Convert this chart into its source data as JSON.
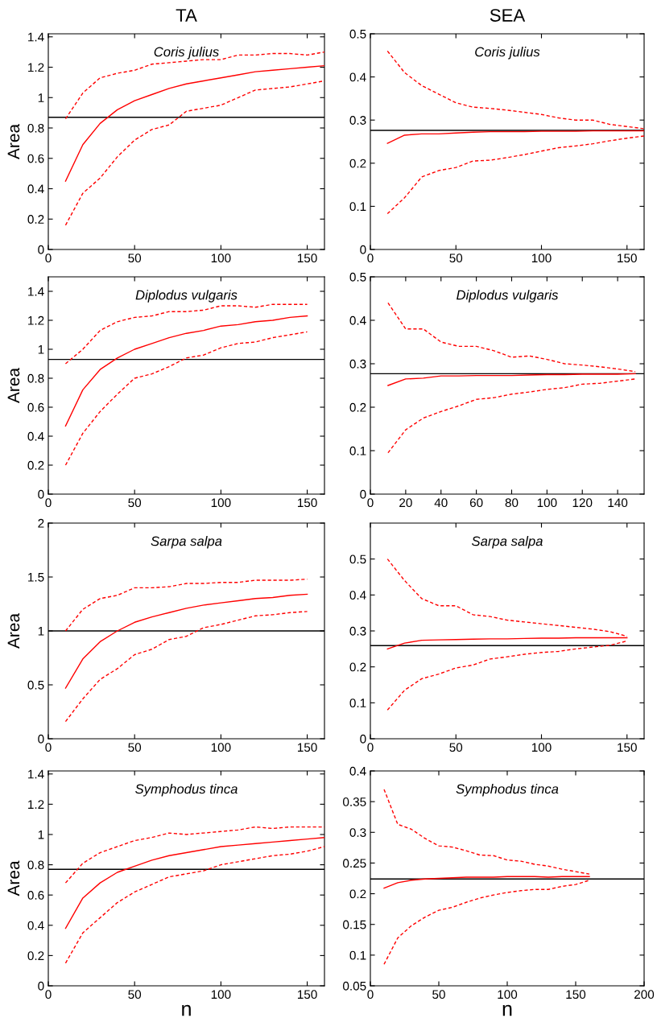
{
  "chart_data": [
    {
      "type": "line",
      "title": "Coris julius",
      "annotations": [
        "TA"
      ],
      "ylabel": "Area",
      "x": [
        10,
        20,
        30,
        40,
        50,
        60,
        70,
        80,
        90,
        100,
        110,
        120,
        130,
        140,
        150,
        160
      ],
      "xlim": [
        0,
        160
      ],
      "xticks": [
        0,
        50,
        100,
        150
      ],
      "ylim": [
        0,
        1.42
      ],
      "yticks": [
        0,
        0.2,
        0.4,
        0.6,
        0.8,
        1,
        1.2,
        1.4
      ],
      "grid": false,
      "ref_lines": [
        {
          "axis": "y",
          "value": 0.87,
          "color": "#000000"
        }
      ],
      "series": [
        {
          "color": "#ff0000",
          "line_style": "solid",
          "values": [
            0.45,
            0.69,
            0.83,
            0.92,
            0.98,
            1.02,
            1.06,
            1.09,
            1.11,
            1.13,
            1.15,
            1.17,
            1.18,
            1.19,
            1.2,
            1.21
          ]
        },
        {
          "color": "#ff0000",
          "line_style": "dashed",
          "values": [
            0.86,
            1.03,
            1.13,
            1.16,
            1.18,
            1.22,
            1.23,
            1.24,
            1.25,
            1.25,
            1.28,
            1.28,
            1.29,
            1.29,
            1.28,
            1.3
          ]
        },
        {
          "color": "#ff0000",
          "line_style": "dashed",
          "values": [
            0.16,
            0.37,
            0.47,
            0.61,
            0.72,
            0.79,
            0.82,
            0.91,
            0.93,
            0.95,
            1.0,
            1.05,
            1.06,
            1.07,
            1.09,
            1.11
          ]
        }
      ]
    },
    {
      "type": "line",
      "title": "Coris julius",
      "annotations": [
        "SEA"
      ],
      "x": [
        10,
        20,
        30,
        40,
        50,
        60,
        70,
        80,
        90,
        100,
        110,
        120,
        130,
        140,
        150,
        160
      ],
      "xlim": [
        0,
        160
      ],
      "xticks": [
        0,
        50,
        100,
        150
      ],
      "ylim": [
        0,
        0.5
      ],
      "yticks": [
        0,
        0.1,
        0.2,
        0.3,
        0.4,
        0.5
      ],
      "grid": false,
      "ref_lines": [
        {
          "axis": "y",
          "value": 0.276,
          "color": "#000000"
        }
      ],
      "series": [
        {
          "color": "#ff0000",
          "line_style": "solid",
          "values": [
            0.246,
            0.265,
            0.268,
            0.268,
            0.27,
            0.272,
            0.273,
            0.273,
            0.273,
            0.274,
            0.274,
            0.274,
            0.275,
            0.275,
            0.275,
            0.275
          ]
        },
        {
          "color": "#ff0000",
          "line_style": "dashed",
          "values": [
            0.46,
            0.41,
            0.38,
            0.36,
            0.34,
            0.33,
            0.327,
            0.323,
            0.318,
            0.313,
            0.305,
            0.3,
            0.3,
            0.29,
            0.285,
            0.28
          ]
        },
        {
          "color": "#ff0000",
          "line_style": "dashed",
          "values": [
            0.083,
            0.12,
            0.168,
            0.183,
            0.19,
            0.205,
            0.207,
            0.213,
            0.22,
            0.228,
            0.236,
            0.24,
            0.245,
            0.252,
            0.258,
            0.263
          ]
        }
      ]
    },
    {
      "type": "line",
      "title": "Diplodus vulgaris",
      "ylabel": "Area",
      "x": [
        10,
        20,
        30,
        40,
        50,
        60,
        70,
        80,
        90,
        100,
        110,
        120,
        130,
        140,
        150
      ],
      "xlim": [
        0,
        160
      ],
      "xticks": [
        0,
        50,
        100,
        150
      ],
      "ylim": [
        0,
        1.5
      ],
      "yticks": [
        0,
        0.2,
        0.4,
        0.6,
        0.8,
        1,
        1.2,
        1.4
      ],
      "grid": false,
      "ref_lines": [
        {
          "axis": "y",
          "value": 0.93,
          "color": "#000000"
        }
      ],
      "series": [
        {
          "color": "#ff0000",
          "line_style": "solid",
          "values": [
            0.47,
            0.72,
            0.86,
            0.94,
            1.0,
            1.04,
            1.08,
            1.11,
            1.13,
            1.16,
            1.17,
            1.19,
            1.2,
            1.22,
            1.23
          ]
        },
        {
          "color": "#ff0000",
          "line_style": "dashed",
          "values": [
            0.9,
            1.0,
            1.13,
            1.19,
            1.22,
            1.23,
            1.26,
            1.26,
            1.27,
            1.3,
            1.3,
            1.29,
            1.31,
            1.31,
            1.31
          ]
        },
        {
          "color": "#ff0000",
          "line_style": "dashed",
          "values": [
            0.2,
            0.42,
            0.57,
            0.69,
            0.8,
            0.83,
            0.88,
            0.94,
            0.96,
            1.01,
            1.04,
            1.05,
            1.08,
            1.1,
            1.12
          ]
        }
      ]
    },
    {
      "type": "line",
      "title": "Diplodus vulgaris",
      "x": [
        10,
        20,
        30,
        40,
        50,
        60,
        70,
        80,
        90,
        100,
        110,
        120,
        130,
        140,
        150
      ],
      "xlim": [
        0,
        155
      ],
      "xticks": [
        0,
        20,
        40,
        60,
        80,
        100,
        120,
        140
      ],
      "ylim": [
        0,
        0.5
      ],
      "yticks": [
        0,
        0.1,
        0.2,
        0.3,
        0.4,
        0.5
      ],
      "grid": false,
      "ref_lines": [
        {
          "axis": "y",
          "value": 0.277,
          "color": "#000000"
        }
      ],
      "series": [
        {
          "color": "#ff0000",
          "line_style": "solid",
          "values": [
            0.25,
            0.265,
            0.267,
            0.272,
            0.272,
            0.273,
            0.273,
            0.273,
            0.274,
            0.275,
            0.275,
            0.276,
            0.276,
            0.276,
            0.277
          ]
        },
        {
          "color": "#ff0000",
          "line_style": "dashed",
          "values": [
            0.44,
            0.38,
            0.38,
            0.35,
            0.34,
            0.34,
            0.33,
            0.315,
            0.318,
            0.31,
            0.3,
            0.297,
            0.293,
            0.288,
            0.282
          ]
        },
        {
          "color": "#ff0000",
          "line_style": "dashed",
          "values": [
            0.095,
            0.148,
            0.175,
            0.19,
            0.203,
            0.218,
            0.222,
            0.23,
            0.235,
            0.241,
            0.245,
            0.253,
            0.255,
            0.26,
            0.265
          ]
        }
      ]
    },
    {
      "type": "line",
      "title": "Sarpa salpa",
      "ylabel": "Area",
      "x": [
        10,
        20,
        30,
        40,
        50,
        60,
        70,
        80,
        90,
        100,
        110,
        120,
        130,
        140,
        150
      ],
      "xlim": [
        0,
        160
      ],
      "xticks": [
        0,
        50,
        100,
        150
      ],
      "ylim": [
        0,
        2
      ],
      "yticks": [
        0,
        0.5,
        1,
        1.5,
        2
      ],
      "grid": false,
      "ref_lines": [
        {
          "axis": "y",
          "value": 1.0,
          "color": "#000000"
        }
      ],
      "series": [
        {
          "color": "#ff0000",
          "line_style": "solid",
          "values": [
            0.47,
            0.74,
            0.9,
            1.0,
            1.08,
            1.13,
            1.17,
            1.21,
            1.24,
            1.26,
            1.28,
            1.3,
            1.31,
            1.33,
            1.34
          ]
        },
        {
          "color": "#ff0000",
          "line_style": "dashed",
          "values": [
            1.0,
            1.2,
            1.3,
            1.33,
            1.4,
            1.4,
            1.41,
            1.44,
            1.44,
            1.45,
            1.45,
            1.47,
            1.47,
            1.47,
            1.48
          ]
        },
        {
          "color": "#ff0000",
          "line_style": "dashed",
          "values": [
            0.16,
            0.37,
            0.55,
            0.65,
            0.78,
            0.83,
            0.92,
            0.95,
            1.03,
            1.06,
            1.1,
            1.14,
            1.15,
            1.17,
            1.18
          ]
        }
      ]
    },
    {
      "type": "line",
      "title": "Sarpa salpa",
      "x": [
        10,
        20,
        30,
        40,
        50,
        60,
        70,
        80,
        90,
        100,
        110,
        120,
        130,
        140,
        150
      ],
      "xlim": [
        0,
        160
      ],
      "xticks": [
        0,
        50,
        100,
        150
      ],
      "ylim": [
        0,
        0.6
      ],
      "yticks": [
        0,
        0.1,
        0.2,
        0.3,
        0.4,
        0.5
      ],
      "grid": false,
      "ref_lines": [
        {
          "axis": "y",
          "value": 0.259,
          "color": "#000000"
        }
      ],
      "series": [
        {
          "color": "#ff0000",
          "line_style": "solid",
          "values": [
            0.25,
            0.266,
            0.274,
            0.275,
            0.276,
            0.277,
            0.278,
            0.278,
            0.279,
            0.28,
            0.28,
            0.281,
            0.281,
            0.281,
            0.281
          ]
        },
        {
          "color": "#ff0000",
          "line_style": "dashed",
          "values": [
            0.5,
            0.44,
            0.39,
            0.37,
            0.37,
            0.345,
            0.34,
            0.33,
            0.325,
            0.32,
            0.315,
            0.31,
            0.305,
            0.298,
            0.285
          ]
        },
        {
          "color": "#ff0000",
          "line_style": "dashed",
          "values": [
            0.08,
            0.135,
            0.167,
            0.18,
            0.197,
            0.205,
            0.222,
            0.228,
            0.235,
            0.24,
            0.243,
            0.25,
            0.255,
            0.26,
            0.272
          ]
        }
      ]
    },
    {
      "type": "line",
      "title": "Symphodus tinca",
      "ylabel": "Area",
      "xlabel": "n",
      "x": [
        10,
        20,
        30,
        40,
        50,
        60,
        70,
        80,
        90,
        100,
        110,
        120,
        130,
        140,
        150,
        160
      ],
      "xlim": [
        0,
        160
      ],
      "xticks": [
        0,
        50,
        100,
        150
      ],
      "ylim": [
        0,
        1.42
      ],
      "yticks": [
        0,
        0.2,
        0.4,
        0.6,
        0.8,
        1,
        1.2,
        1.4
      ],
      "grid": false,
      "ref_lines": [
        {
          "axis": "y",
          "value": 0.77,
          "color": "#000000"
        }
      ],
      "series": [
        {
          "color": "#ff0000",
          "line_style": "solid",
          "values": [
            0.38,
            0.58,
            0.68,
            0.75,
            0.79,
            0.83,
            0.86,
            0.88,
            0.9,
            0.92,
            0.93,
            0.94,
            0.95,
            0.96,
            0.97,
            0.98
          ]
        },
        {
          "color": "#ff0000",
          "line_style": "dashed",
          "values": [
            0.68,
            0.81,
            0.88,
            0.92,
            0.96,
            0.98,
            1.01,
            1.0,
            1.01,
            1.02,
            1.03,
            1.05,
            1.04,
            1.05,
            1.05,
            1.05
          ]
        },
        {
          "color": "#ff0000",
          "line_style": "dashed",
          "values": [
            0.15,
            0.35,
            0.45,
            0.55,
            0.62,
            0.67,
            0.72,
            0.74,
            0.76,
            0.8,
            0.82,
            0.84,
            0.86,
            0.87,
            0.89,
            0.92
          ]
        }
      ]
    },
    {
      "type": "line",
      "title": "Symphodus tinca",
      "xlabel": "n",
      "x": [
        10,
        20,
        30,
        40,
        50,
        60,
        70,
        80,
        90,
        100,
        110,
        120,
        130,
        140,
        150,
        160
      ],
      "xlim": [
        0,
        200
      ],
      "xticks": [
        0,
        50,
        100,
        150,
        200
      ],
      "ylim": [
        0.05,
        0.4
      ],
      "yticks": [
        0.05,
        0.1,
        0.15,
        0.2,
        0.25,
        0.3,
        0.35,
        0.4
      ],
      "grid": false,
      "ref_lines": [
        {
          "axis": "y",
          "value": 0.224,
          "color": "#000000"
        }
      ],
      "series": [
        {
          "color": "#ff0000",
          "line_style": "solid",
          "values": [
            0.209,
            0.218,
            0.222,
            0.224,
            0.225,
            0.226,
            0.227,
            0.227,
            0.227,
            0.228,
            0.228,
            0.228,
            0.227,
            0.228,
            0.228,
            0.228
          ]
        },
        {
          "color": "#ff0000",
          "line_style": "dashed",
          "values": [
            0.37,
            0.313,
            0.305,
            0.29,
            0.278,
            0.276,
            0.27,
            0.263,
            0.262,
            0.255,
            0.253,
            0.248,
            0.245,
            0.24,
            0.236,
            0.232
          ]
        },
        {
          "color": "#ff0000",
          "line_style": "dashed",
          "values": [
            0.085,
            0.128,
            0.148,
            0.162,
            0.173,
            0.178,
            0.186,
            0.193,
            0.198,
            0.202,
            0.205,
            0.207,
            0.207,
            0.212,
            0.215,
            0.222
          ]
        }
      ]
    }
  ]
}
